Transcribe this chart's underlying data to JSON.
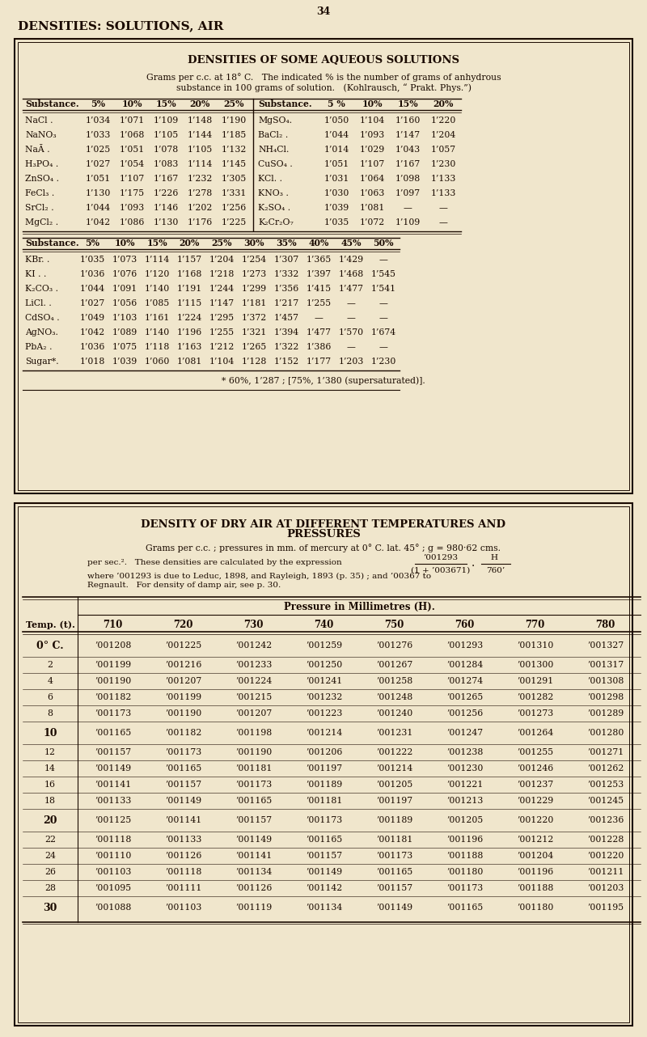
{
  "page_number": "34",
  "page_title": "DENSITIES: SOLUTIONS, AIR",
  "bg_color": "#f0e6cc",
  "text_color": "#1a0a00",
  "section1_title": "DENSITIES OF SOME AQUEOUS SOLUTIONS",
  "section1_sub1": "Grams per c.c. at 18° C.   The indicated % is the number of grams of anhydrous",
  "section1_sub2": "substance in 100 grams of solution.   (Kohlrausch, “ Prakt. Phys.”)",
  "t1_headers_left": [
    "Substance.",
    "5%",
    "10%",
    "15%",
    "20%",
    "25%"
  ],
  "t1_headers_right": [
    "Substance.",
    "5 %",
    "10%",
    "15%",
    "20%"
  ],
  "t1_rows": [
    [
      "NaCl .",
      "1’034",
      "1’071",
      "1’109",
      "1’148",
      "1’190",
      "MgSO₄.",
      "1’050",
      "1’104",
      "1’160",
      "1’220"
    ],
    [
      "NaNO₃",
      "1’033",
      "1’068",
      "1’105",
      "1’144",
      "1’185",
      "BaCl₂ .",
      "1’044",
      "1’093",
      "1’147",
      "1’204"
    ],
    [
      "NaĀ .",
      "1’025",
      "1’051",
      "1’078",
      "1’105",
      "1’132",
      "NH₄Cl.",
      "1’014",
      "1’029",
      "1’043",
      "1’057"
    ],
    [
      "H₃PO₄ .",
      "1’027",
      "1’054",
      "1’083",
      "1’114",
      "1’145",
      "CuSO₄ .",
      "1’051",
      "1’107",
      "1’167",
      "1’230"
    ],
    [
      "ZnSO₄ .",
      "1’051",
      "1’107",
      "1’167",
      "1’232",
      "1’305",
      "KCl. .",
      "1’031",
      "1’064",
      "1’098",
      "1’133"
    ],
    [
      "FeCl₃ .",
      "1’130",
      "1’175",
      "1’226",
      "1’278",
      "1’331",
      "KNO₃ .",
      "1’030",
      "1’063",
      "1’097",
      "1’133"
    ],
    [
      "SrCl₂ .",
      "1’044",
      "1’093",
      "1’146",
      "1’202",
      "1’256",
      "K₂SO₄ .",
      "1’039",
      "1’081",
      "—",
      "—"
    ],
    [
      "MgCl₂ .",
      "1’042",
      "1’086",
      "1’130",
      "1’176",
      "1’225",
      "K₂Cr₂O₇",
      "1’035",
      "1’072",
      "1’109",
      "—"
    ]
  ],
  "t2_headers": [
    "Substance.",
    "5%",
    "10%",
    "15%",
    "20%",
    "25%",
    "30%",
    "35%",
    "40%",
    "45%",
    "50%"
  ],
  "t2_rows": [
    [
      "KBr. .",
      "1’035",
      "1’073",
      "1’114",
      "1’157",
      "1’204",
      "1’254",
      "1’307",
      "1’365",
      "1’429",
      "—"
    ],
    [
      "KI . .",
      "1’036",
      "1’076",
      "1’120",
      "1’168",
      "1’218",
      "1’273",
      "1’332",
      "1’397",
      "1’468",
      "1’545"
    ],
    [
      "K₂CO₃ .",
      "1’044",
      "1’091",
      "1’140",
      "1’191",
      "1’244",
      "1’299",
      "1’356",
      "1’415",
      "1’477",
      "1’541"
    ],
    [
      "LiCl. .",
      "1’027",
      "1’056",
      "1’085",
      "1’115",
      "1’147",
      "1’181",
      "1’217",
      "1’255",
      "—",
      "—"
    ],
    [
      "CdSO₄ .",
      "1’049",
      "1’103",
      "1’161",
      "1’224",
      "1’295",
      "1’372",
      "1’457",
      "—",
      "—",
      "—"
    ],
    [
      "AgNO₃.",
      "1’042",
      "1’089",
      "1’140",
      "1’196",
      "1’255",
      "1’321",
      "1’394",
      "1’477",
      "1’570",
      "1’674"
    ],
    [
      "PbA₂ .",
      "1’036",
      "1’075",
      "1’118",
      "1’163",
      "1’212",
      "1’265",
      "1’322",
      "1’386",
      "—",
      "—"
    ],
    [
      "Sugar*.",
      "1’018",
      "1’039",
      "1’060",
      "1’081",
      "1’104",
      "1’128",
      "1’152",
      "1’177",
      "1’203",
      "1’230"
    ]
  ],
  "t2_footnote": "* 60%, 1’287 ; [75%, 1’380 (supersaturated)].",
  "s2_title1": "DENSITY OF DRY AIR AT DIFFERENT TEMPERATURES AND",
  "s2_title2": "PRESSURES",
  "s2_sub1": "Grams per c.c. ; pressures in mm. of mercury at 0° C. lat. 45° ; g = 980·62 cms.",
  "s2_sub2a": "per sec.².   These densities are calculated by the expression",
  "s2_frac_num": "’001293",
  "s2_frac_den": "(1 + ’003671)",
  "s2_frac_H": "H",
  "s2_frac_760": "760’",
  "s2_sub3": "where ’001293 is due to Leduc, 1898, and Rayleigh, 1893 (p. 35) ; and ’00367 to",
  "s2_sub4": "Regnault.   For density of damp air, see p. 30.",
  "at_col_header": "Pressure in Millimetres (H).",
  "at_temp_label": "Temp. (t).",
  "at_pressures": [
    "710",
    "720",
    "730",
    "740",
    "750",
    "760",
    "770",
    "780"
  ],
  "at_temps": [
    "0° C.",
    "2",
    "4",
    "6",
    "8",
    "10",
    "12",
    "14",
    "16",
    "18",
    "20",
    "22",
    "24",
    "26",
    "28",
    "30"
  ],
  "at_data": [
    [
      "’001208",
      "’001225",
      "’001242",
      "’001259",
      "’001276",
      "’001293",
      "’001310",
      "’001327"
    ],
    [
      "’001199",
      "’001216",
      "’001233",
      "’001250",
      "’001267",
      "’001284",
      "’001300",
      "’001317"
    ],
    [
      "’001190",
      "’001207",
      "’001224",
      "’001241",
      "’001258",
      "’001274",
      "’001291",
      "’001308"
    ],
    [
      "’001182",
      "’001199",
      "’001215",
      "’001232",
      "’001248",
      "’001265",
      "’001282",
      "’001298"
    ],
    [
      "’001173",
      "’001190",
      "’001207",
      "’001223",
      "’001240",
      "’001256",
      "’001273",
      "’001289"
    ],
    [
      "’001165",
      "’001182",
      "’001198",
      "’001214",
      "’001231",
      "’001247",
      "’001264",
      "’001280"
    ],
    [
      "’001157",
      "’001173",
      "’001190",
      "’001206",
      "’001222",
      "’001238",
      "’001255",
      "’001271"
    ],
    [
      "’001149",
      "’001165",
      "’001181",
      "’001197",
      "’001214",
      "’001230",
      "’001246",
      "’001262"
    ],
    [
      "’001141",
      "’001157",
      "’001173",
      "’001189",
      "’001205",
      "’001221",
      "’001237",
      "’001253"
    ],
    [
      "’001133",
      "’001149",
      "’001165",
      "’001181",
      "’001197",
      "’001213",
      "’001229",
      "’001245"
    ],
    [
      "’001125",
      "’001141",
      "’001157",
      "’001173",
      "’001189",
      "’001205",
      "’001220",
      "’001236"
    ],
    [
      "’001118",
      "’001133",
      "’001149",
      "’001165",
      "’001181",
      "’001196",
      "’001212",
      "’001228"
    ],
    [
      "’001110",
      "’001126",
      "’001141",
      "’001157",
      "’001173",
      "’001188",
      "’001204",
      "’001220"
    ],
    [
      "’001103",
      "’001118",
      "’001134",
      "’001149",
      "’001165",
      "’001180",
      "’001196",
      "’001211"
    ],
    [
      "’001095",
      "’001111",
      "’001126",
      "’001142",
      "’001157",
      "’001173",
      "’001188",
      "’001203"
    ],
    [
      "’001088",
      "’001103",
      "’001119",
      "’001134",
      "’001149",
      "’001165",
      "’001180",
      "’001195"
    ]
  ],
  "at_row_heights": [
    28,
    20,
    20,
    20,
    20,
    28,
    20,
    20,
    20,
    20,
    28,
    20,
    20,
    20,
    20,
    28
  ]
}
